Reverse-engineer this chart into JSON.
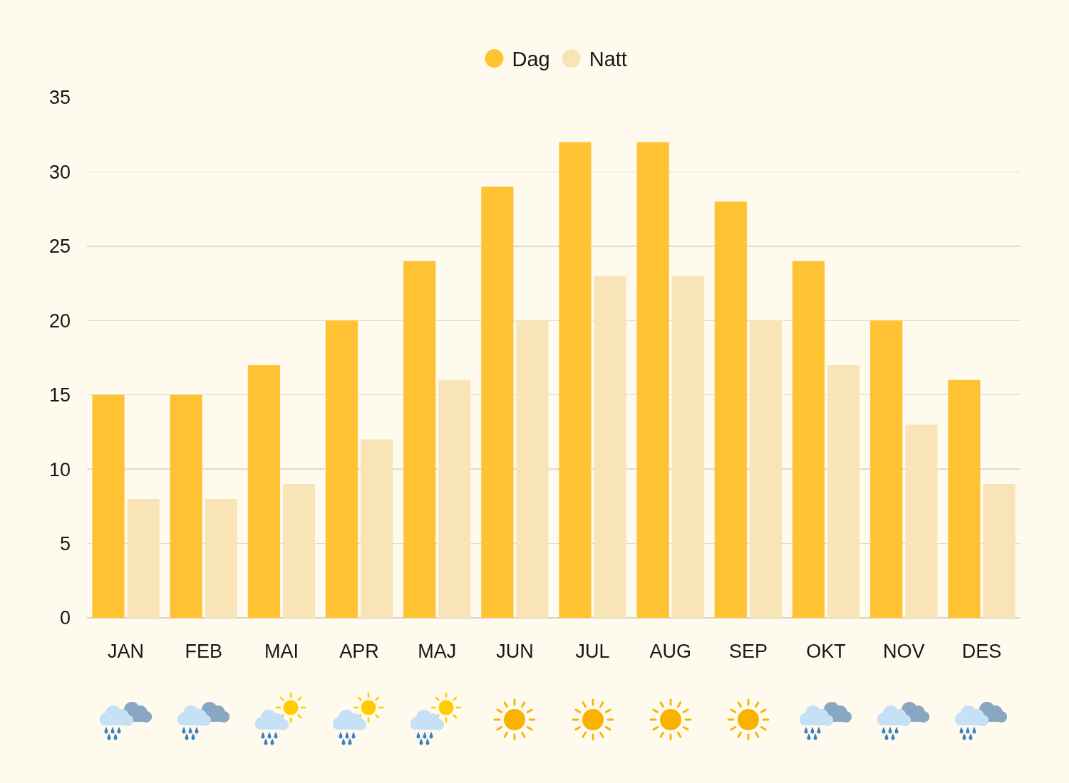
{
  "chart_data": {
    "type": "bar",
    "categories": [
      "JAN",
      "FEB",
      "MAI",
      "APR",
      "MAJ",
      "JUN",
      "JUL",
      "AUG",
      "SEP",
      "OKT",
      "NOV",
      "DES"
    ],
    "series": [
      {
        "name": "Dag",
        "color": "#ffc233",
        "values": [
          15,
          15,
          17,
          20,
          24,
          29,
          32,
          32,
          28,
          24,
          20,
          16
        ]
      },
      {
        "name": "Natt",
        "color": "#f9e4b8",
        "values": [
          8,
          8,
          9,
          12,
          16,
          20,
          23,
          23,
          20,
          17,
          13,
          9
        ]
      }
    ],
    "ylim": [
      0,
      35
    ],
    "yticks": [
      0,
      5,
      10,
      15,
      20,
      25,
      30,
      35
    ],
    "grid": "y",
    "legend": "top"
  }
}
